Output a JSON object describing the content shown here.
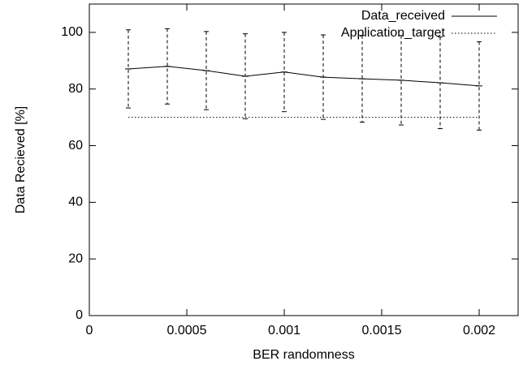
{
  "chart_data": {
    "type": "line",
    "x_label": "BER randomness",
    "y_label": "Data Recieved [%]",
    "x": [
      0.0002,
      0.0004,
      0.0006,
      0.0008,
      0.001,
      0.0012,
      0.0014,
      0.0016,
      0.0018,
      0.002
    ],
    "series": [
      {
        "name": "Data_received",
        "color": "#000000",
        "line_style": "solid",
        "values": [
          87.1,
          88.0,
          86.5,
          84.5,
          86.0,
          84.2,
          83.6,
          83.1,
          82.2,
          81.1
        ],
        "errors": [
          13.8,
          13.3,
          13.8,
          15.0,
          14.0,
          14.9,
          15.3,
          15.8,
          16.2,
          15.6
        ]
      },
      {
        "name": "Application_target",
        "color": "#000000",
        "line_style": "dotted",
        "values": [
          70,
          70,
          70,
          70,
          70,
          70,
          70,
          70,
          70,
          70
        ]
      }
    ],
    "xlim": [
      0,
      0.0022
    ],
    "xticks": [
      0,
      0.0005,
      0.001,
      0.0015,
      0.002
    ],
    "ylim": [
      0,
      110
    ],
    "yticks": [
      0,
      20,
      40,
      60,
      80,
      100
    ],
    "grid": false,
    "legend": "top-right"
  }
}
